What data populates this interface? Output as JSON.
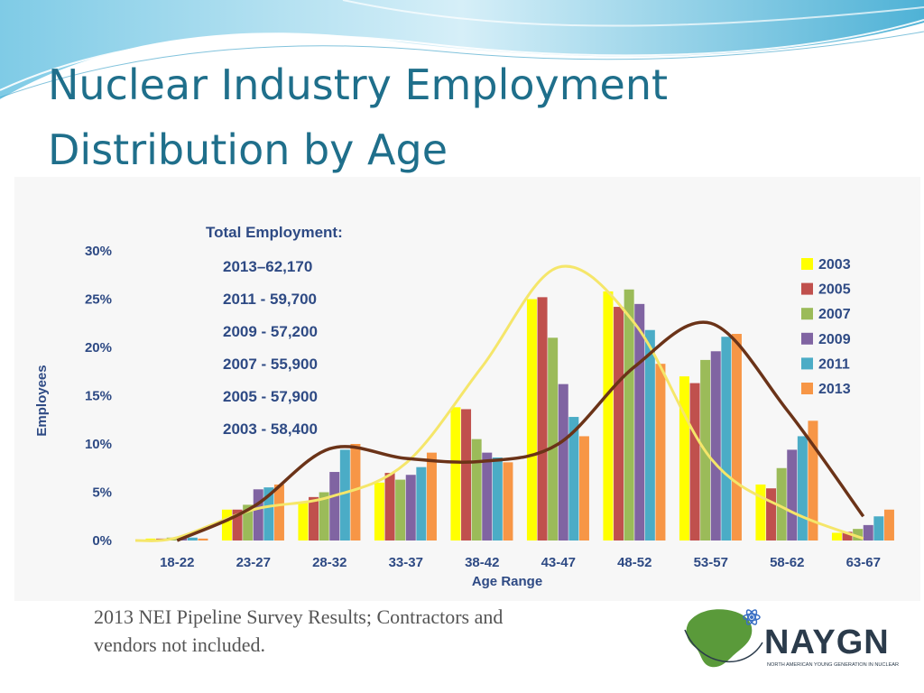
{
  "slide": {
    "title_line1": "Nuclear Industry Employment",
    "title_line2": "Distribution by Age",
    "caption_line1": "2013 NEI Pipeline Survey Results; Contractors and",
    "caption_line2": "vendors not included."
  },
  "logo": {
    "name": "NAYGN",
    "tagline": "NORTH AMERICAN YOUNG GENERATION IN NUCLEAR",
    "colors": {
      "green": "#5a9a3a",
      "dark": "#2b3b4b",
      "blue": "#3a6fc4"
    }
  },
  "colors": {
    "title": "#1f6f8b",
    "axis_text": "#2e4a84",
    "swoosh_light": "#bfe4f2",
    "swoosh_dark": "#5fb9d8",
    "trend_2003": "#f5e66a",
    "trend_2013": "#6b3318"
  },
  "chart_data": {
    "type": "bar",
    "xlabel": "Age Range",
    "ylabel": "Employees",
    "ylim": [
      0,
      30
    ],
    "ytick_values": [
      0,
      5,
      10,
      15,
      20,
      25,
      30
    ],
    "ytick_labels": [
      "0%",
      "5%",
      "10%",
      "15%",
      "20%",
      "25%",
      "30%"
    ],
    "grid": false,
    "legend_position": "top-right",
    "categories": [
      "18-22",
      "23-27",
      "28-32",
      "33-37",
      "38-42",
      "43-47",
      "48-52",
      "53-57",
      "58-62",
      "63-67"
    ],
    "series": [
      {
        "name": "2003",
        "color": "#ffff00",
        "values": [
          0.2,
          3.2,
          4.0,
          6.0,
          13.8,
          25.0,
          25.8,
          17.0,
          5.8,
          0.8
        ]
      },
      {
        "name": "2005",
        "color": "#c0504d",
        "values": [
          0.2,
          3.2,
          4.5,
          7.0,
          13.6,
          25.2,
          24.2,
          16.3,
          5.4,
          0.9
        ]
      },
      {
        "name": "2007",
        "color": "#9bbb59",
        "values": [
          0.3,
          3.7,
          5.0,
          6.3,
          10.5,
          21.0,
          26.0,
          18.7,
          7.5,
          1.2
        ]
      },
      {
        "name": "2009",
        "color": "#8064a2",
        "values": [
          0.4,
          5.3,
          7.1,
          6.8,
          9.1,
          16.2,
          24.5,
          19.6,
          9.4,
          1.6
        ]
      },
      {
        "name": "2011",
        "color": "#4bacc6",
        "values": [
          0.3,
          5.5,
          9.4,
          7.6,
          8.6,
          12.8,
          21.8,
          21.1,
          10.8,
          2.5
        ]
      },
      {
        "name": "2013",
        "color": "#f79646",
        "values": [
          0.2,
          5.8,
          10.0,
          9.1,
          8.1,
          10.8,
          18.3,
          21.4,
          12.4,
          3.2
        ]
      }
    ],
    "trend_2003": [
      0.3,
      3.2,
      4.5,
      8.0,
      18.0,
      28.3,
      22.5,
      8.5,
      3.2,
      0.2
    ],
    "trend_2013": [
      0.0,
      3.5,
      9.5,
      8.5,
      8.2,
      10.0,
      18.0,
      22.5,
      13.5,
      2.5
    ],
    "annotation": {
      "heading": "Total Employment:",
      "lines": [
        "2013–62,170",
        "2011 - 59,700",
        "2009 - 57,200",
        "2007 - 55,900",
        "2005 - 57,900",
        "2003 - 58,400"
      ]
    }
  }
}
